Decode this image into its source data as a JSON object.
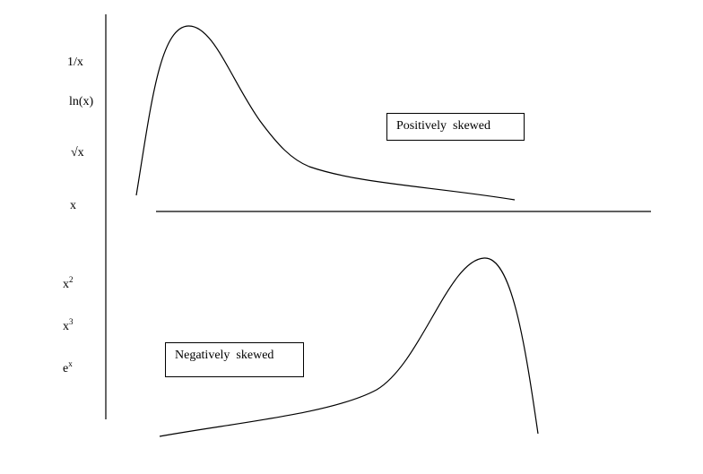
{
  "transforms": {
    "reciprocal": "1/x",
    "log": "ln(x)",
    "sqrt": "√x",
    "identity": "x",
    "square_base": "x",
    "square_exp": "2",
    "cube_base": "x",
    "cube_exp": "3",
    "exp_base": "e",
    "exp_exp": "x"
  },
  "labels": {
    "positive": "Positively  skewed",
    "negative": "Negatively  skewed"
  },
  "colors": {
    "line": "#000000",
    "background": "#ffffff"
  }
}
